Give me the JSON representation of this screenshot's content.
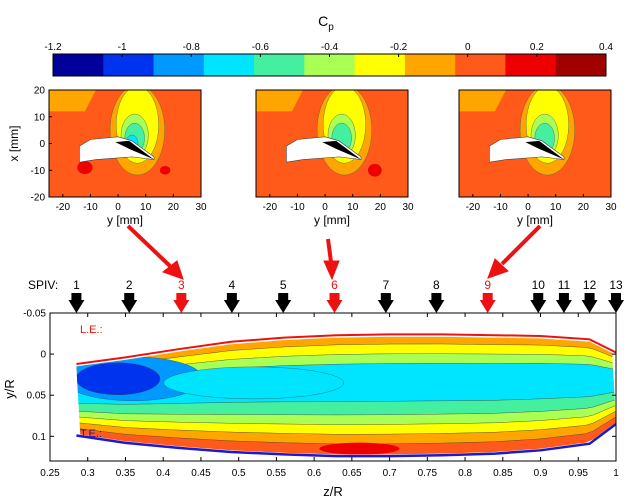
{
  "colorbar": {
    "label_main": "C",
    "label_sub": "p",
    "ticks": [
      "-1.2",
      "-1",
      "-0.8",
      "-0.6",
      "-0.4",
      "-0.2",
      "0",
      "0.2",
      "0.4"
    ],
    "colors": [
      "#00009b",
      "#0033ee",
      "#0099ff",
      "#00e5ff",
      "#44f0a0",
      "#aaff55",
      "#ffff00",
      "#ffa500",
      "#ff5a1a",
      "#ee0000",
      "#a00000"
    ]
  },
  "small_plots": {
    "xlabel": "y [mm]",
    "ylabel": "x [mm]",
    "xticks": [
      "-20",
      "-10",
      "0",
      "10",
      "20",
      "30"
    ],
    "yticks": [
      "20",
      "10",
      "0",
      "-10",
      "-20"
    ]
  },
  "spiv": {
    "label": "SPIV:",
    "stations": [
      {
        "n": "1",
        "z": 0.285,
        "highlight": false
      },
      {
        "n": "2",
        "z": 0.355,
        "highlight": false
      },
      {
        "n": "3",
        "z": 0.424,
        "highlight": true
      },
      {
        "n": "4",
        "z": 0.491,
        "highlight": false
      },
      {
        "n": "5",
        "z": 0.559,
        "highlight": false
      },
      {
        "n": "6",
        "z": 0.627,
        "highlight": true
      },
      {
        "n": "7",
        "z": 0.695,
        "highlight": false
      },
      {
        "n": "8",
        "z": 0.762,
        "highlight": false
      },
      {
        "n": "9",
        "z": 0.83,
        "highlight": true
      },
      {
        "n": "10",
        "z": 0.897,
        "highlight": false
      },
      {
        "n": "11",
        "z": 0.931,
        "highlight": false
      },
      {
        "n": "12",
        "z": 0.965,
        "highlight": false
      },
      {
        "n": "13",
        "z": 1.0,
        "highlight": false
      }
    ]
  },
  "main_plot": {
    "xlabel": "z/R",
    "ylabel": "y/R",
    "xticks": [
      "0.25",
      "0.3",
      "0.35",
      "0.4",
      "0.45",
      "0.5",
      "0.55",
      "0.6",
      "0.65",
      "0.7",
      "0.75",
      "0.8",
      "0.85",
      "0.9",
      "0.95",
      "1"
    ],
    "yticks": [
      "-0.05",
      "0",
      "0.05",
      "0.1"
    ],
    "le_label": "L.E.:",
    "te_label": "T.E.:"
  },
  "chart_data": {
    "type": "heatmap",
    "title": "",
    "colorbar_range": [
      -1.2,
      0.4
    ],
    "colorbar_step": 0.2,
    "main_axes": {
      "xlim": [
        0.25,
        1.0
      ],
      "ylim": [
        -0.05,
        0.13
      ],
      "y_reversed": true
    },
    "leading_edge": {
      "z": [
        0.285,
        0.35,
        0.42,
        0.49,
        0.56,
        0.63,
        0.7,
        0.77,
        0.84,
        0.9,
        0.965,
        1.0
      ],
      "y": [
        0.012,
        0.004,
        -0.006,
        -0.015,
        -0.02,
        -0.023,
        -0.024,
        -0.024,
        -0.023,
        -0.022,
        -0.018,
        -0.002
      ]
    },
    "trailing_edge": {
      "z": [
        0.285,
        0.35,
        0.42,
        0.49,
        0.56,
        0.63,
        0.7,
        0.77,
        0.84,
        0.9,
        0.965,
        1.0
      ],
      "y": [
        0.099,
        0.108,
        0.114,
        0.119,
        0.122,
        0.124,
        0.124,
        0.123,
        0.121,
        0.117,
        0.109,
        0.085
      ]
    },
    "small_axes": {
      "xlim": [
        -25,
        30
      ],
      "ylim": [
        -20,
        20
      ]
    },
    "detail_stations": [
      "3",
      "6",
      "9"
    ]
  }
}
